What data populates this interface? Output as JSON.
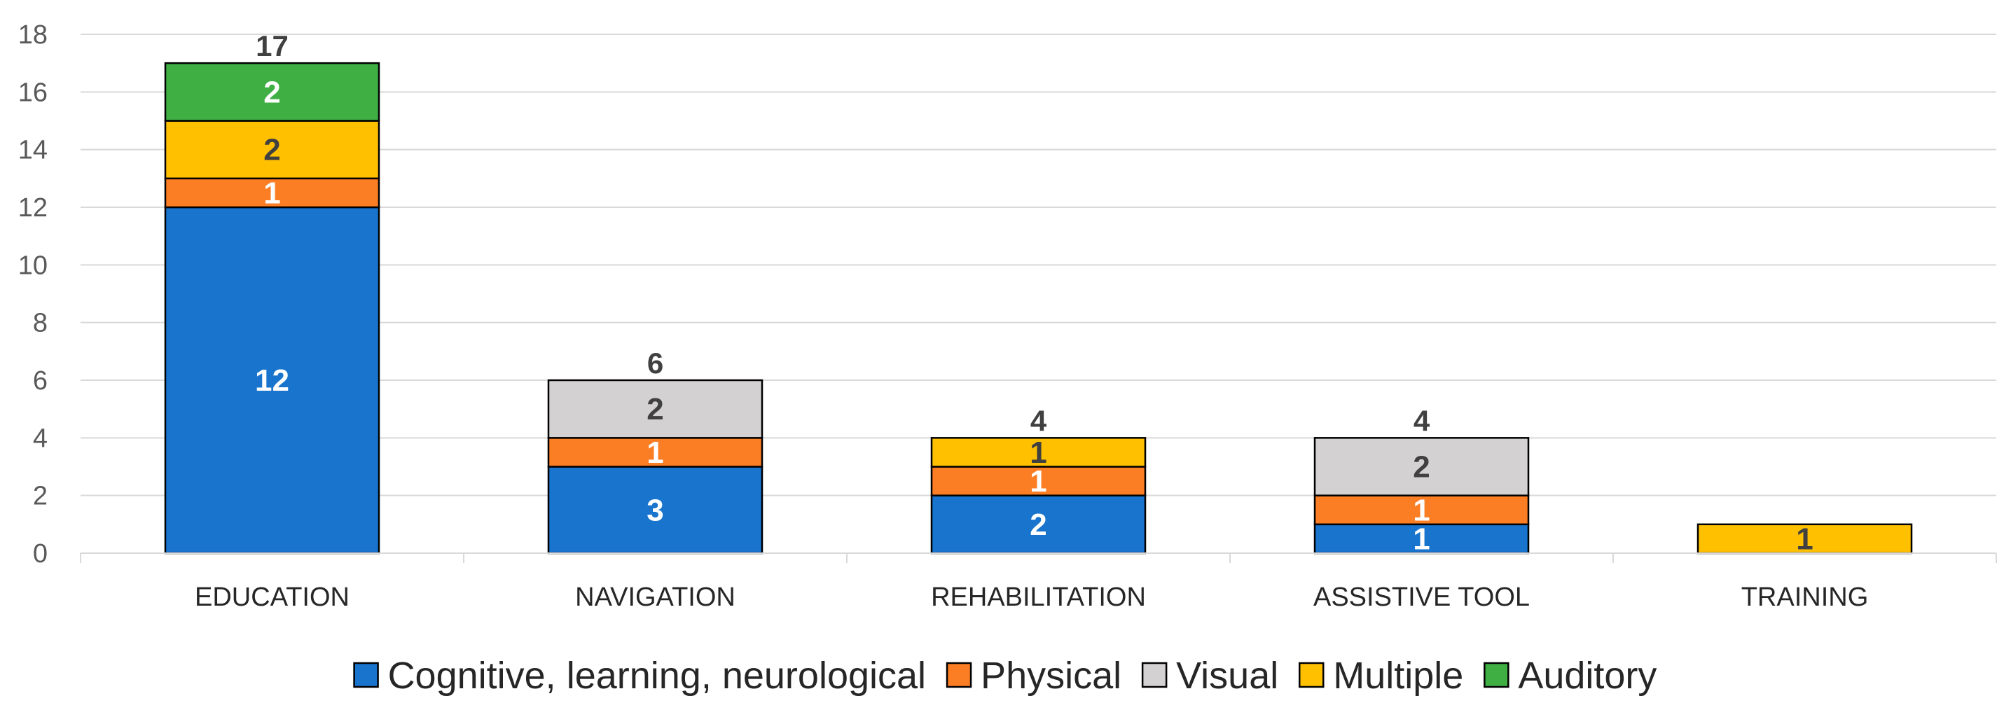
{
  "chart_data": {
    "type": "bar",
    "stacked": true,
    "title": "",
    "xlabel": "",
    "ylabel": "",
    "ylim": [
      0,
      18
    ],
    "yticks": [
      0,
      2,
      4,
      6,
      8,
      10,
      12,
      14,
      16,
      18
    ],
    "grid": true,
    "legend_position": "bottom",
    "categories": [
      "EDUCATION",
      "NAVIGATION",
      "REHABILITATION",
      "ASSISTIVE TOOL",
      "TRAINING"
    ],
    "totals": [
      17,
      6,
      4,
      4,
      1
    ],
    "series": [
      {
        "name": "Cognitive, learning, neurological",
        "color": "#1874CD",
        "label_color": "#ffffff",
        "values": [
          12,
          3,
          2,
          1,
          0
        ]
      },
      {
        "name": "Physical",
        "color": "#FB7D24",
        "label_color": "#ffffff",
        "values": [
          1,
          1,
          1,
          1,
          0
        ]
      },
      {
        "name": "Visual",
        "color": "#D3D1D1",
        "label_color": "#404040",
        "values": [
          0,
          2,
          0,
          2,
          0
        ]
      },
      {
        "name": "Multiple",
        "color": "#FFC000",
        "label_color": "#404040",
        "values": [
          2,
          0,
          1,
          0,
          1
        ]
      },
      {
        "name": "Auditory",
        "color": "#3FAF44",
        "label_color": "#ffffff",
        "values": [
          2,
          0,
          0,
          0,
          0
        ]
      }
    ]
  }
}
